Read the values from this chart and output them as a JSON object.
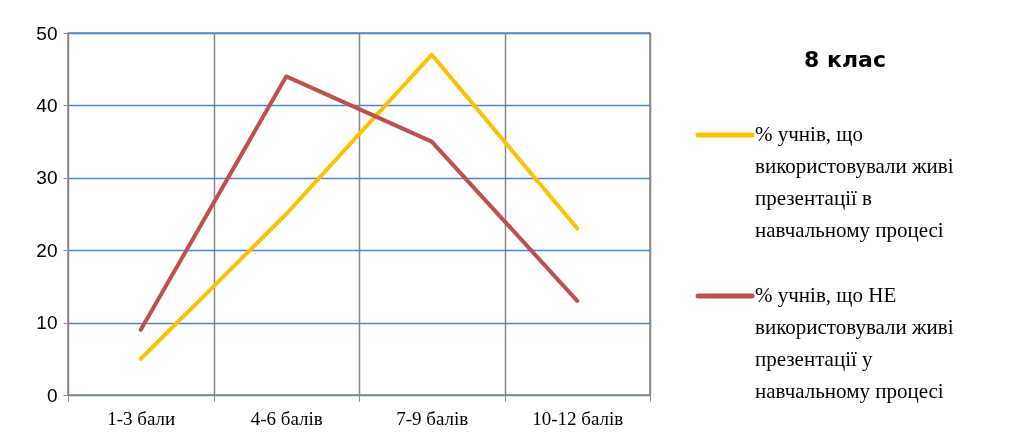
{
  "chart_data": {
    "type": "line",
    "title": "8 клас",
    "categories": [
      "1-3 бали",
      "4-6 балів",
      "7-9 балів",
      "10-12 балів"
    ],
    "series": [
      {
        "name": "% учнів, що використовували живі презентації в навчальному процесі",
        "color": "#ffc000",
        "values": [
          5,
          25,
          47,
          23
        ]
      },
      {
        "name": "% учнів, що НЕ використовували живі презентації у навчальному процесі",
        "color": "#c0504d",
        "values": [
          9,
          44,
          35,
          13
        ]
      }
    ],
    "ylim": [
      0,
      50
    ],
    "yticks": [
      0,
      10,
      20,
      30,
      40,
      50
    ],
    "grid": true,
    "legend": "right",
    "marker": "none",
    "line_style": "solid"
  }
}
